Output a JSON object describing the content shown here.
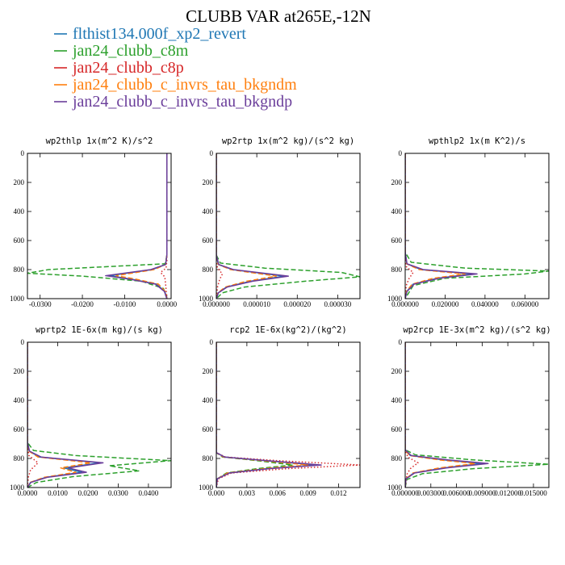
{
  "figure": {
    "title": "CLUBB VAR at265E,-12N"
  },
  "legend": [
    {
      "label": "flthist134.000f_xp2_revert",
      "color": "#1f77b4"
    },
    {
      "label": "jan24_clubb_c8m",
      "color": "#2ca02c"
    },
    {
      "label": "jan24_clubb_c8p",
      "color": "#d62728"
    },
    {
      "label": "jan24_clubb_c_invrs_tau_bkgndm",
      "color": "#ff7f0e"
    },
    {
      "label": "jan24_clubb_c_invrs_tau_bkgndp",
      "color": "#6a3d9a"
    }
  ],
  "chart_data": [
    {
      "type": "line",
      "title": "wp2thlp  1x(m^2 K)/s^2",
      "xlim": [
        -0.033,
        0.001
      ],
      "ylim": [
        1000,
        0
      ],
      "y_inverted": true,
      "xticks": [
        -0.03,
        -0.02,
        -0.01,
        0.0
      ],
      "xtick_labels": [
        "-0.0300",
        "-0.0200",
        "-0.0100",
        "0.0000"
      ],
      "yticks": [
        0,
        200,
        400,
        600,
        800,
        1000
      ],
      "series": [
        {
          "color": "#1f77b4",
          "style": "solid",
          "x": [
            0.0,
            0.0,
            0.0,
            -0.0003,
            -0.0035,
            -0.0135,
            -0.0085,
            -0.0025,
            -0.0005,
            0.0
          ],
          "y": [
            0,
            400,
            700,
            765,
            800,
            842,
            865,
            900,
            950,
            1000
          ]
        },
        {
          "color": "#2ca02c",
          "style": "dashed",
          "x": [
            0.0,
            0.0,
            -0.0004,
            -0.028,
            -0.033,
            -0.02,
            -0.006,
            -0.0008,
            0.0
          ],
          "y": [
            0,
            700,
            760,
            800,
            825,
            845,
            880,
            930,
            1000
          ]
        },
        {
          "color": "#d62728",
          "style": "dotted",
          "x": [
            0.0,
            0.0,
            -0.0002,
            -0.0015,
            -0.0005,
            -0.0003,
            0.0
          ],
          "y": [
            0,
            740,
            790,
            820,
            850,
            900,
            1000
          ]
        },
        {
          "color": "#ff7f0e",
          "style": "dashed",
          "x": [
            0.0,
            0.0,
            0.0,
            -0.0003,
            -0.003,
            -0.012,
            -0.0075,
            -0.002,
            -0.0004,
            0.0
          ],
          "y": [
            0,
            400,
            700,
            765,
            800,
            842,
            865,
            900,
            950,
            1000
          ]
        },
        {
          "color": "#6a3d9a",
          "style": "solid",
          "x": [
            0.0,
            0.0,
            0.0,
            -0.0003,
            -0.0038,
            -0.0145,
            -0.009,
            -0.0027,
            -0.0006,
            0.0
          ],
          "y": [
            0,
            400,
            700,
            765,
            800,
            842,
            865,
            900,
            950,
            1000
          ]
        }
      ]
    },
    {
      "type": "line",
      "title": "wp2rtp  1x(m^2 kg)/(s^2 kg)",
      "xlim": [
        0.0,
        3.55e-05
      ],
      "ylim": [
        1000,
        0
      ],
      "y_inverted": true,
      "xticks": [
        0.0,
        1e-05,
        2e-05,
        3e-05
      ],
      "xtick_labels": [
        "0.000000",
        "0.000010",
        "0.000020",
        "0.000030"
      ],
      "yticks": [
        0,
        200,
        400,
        600,
        800,
        1000
      ],
      "series": [
        {
          "color": "#1f77b4",
          "style": "solid",
          "x": [
            0.0,
            0.0,
            5e-07,
            4e-06,
            1.68e-05,
            8.5e-06,
            2.5e-06,
            5e-07,
            0.0
          ],
          "y": [
            0,
            700,
            765,
            800,
            845,
            880,
            920,
            960,
            1000
          ]
        },
        {
          "color": "#2ca02c",
          "style": "dashed",
          "x": [
            0.0,
            0.0,
            1e-06,
            1.2e-05,
            3.1e-05,
            3.55e-05,
            2.2e-05,
            7e-06,
            1.5e-06,
            0.0
          ],
          "y": [
            0,
            700,
            755,
            790,
            820,
            850,
            880,
            920,
            960,
            1000
          ]
        },
        {
          "color": "#d62728",
          "style": "dotted",
          "x": [
            0.0,
            0.0,
            3e-07,
            1.5e-06,
            8e-07,
            3e-07,
            0.0
          ],
          "y": [
            0,
            740,
            790,
            830,
            870,
            920,
            1000
          ]
        },
        {
          "color": "#ff7f0e",
          "style": "dashed",
          "x": [
            0.0,
            0.0,
            5e-07,
            3.5e-06,
            1.48e-05,
            7.5e-06,
            2.2e-06,
            4e-07,
            0.0
          ],
          "y": [
            0,
            700,
            765,
            800,
            845,
            880,
            920,
            960,
            1000
          ]
        },
        {
          "color": "#6a3d9a",
          "style": "solid",
          "x": [
            0.0,
            0.0,
            6e-07,
            4.2e-06,
            1.78e-05,
            9e-06,
            2.7e-06,
            5e-07,
            0.0
          ],
          "y": [
            0,
            700,
            765,
            800,
            845,
            880,
            920,
            960,
            1000
          ]
        }
      ]
    },
    {
      "type": "line",
      "title": "wpthlp2  1x(m K^2)/s",
      "xlim": [
        0.0,
        0.072
      ],
      "ylim": [
        1000,
        0
      ],
      "y_inverted": true,
      "xticks": [
        0.0,
        0.02,
        0.04,
        0.06
      ],
      "xtick_labels": [
        "0.000000",
        "0.020000",
        "0.040000",
        "0.060000"
      ],
      "yticks": [
        0,
        200,
        400,
        600,
        800,
        1000
      ],
      "series": [
        {
          "color": "#1f77b4",
          "style": "solid",
          "x": [
            0.0,
            0.0,
            0.0008,
            0.008,
            0.034,
            0.016,
            0.004,
            0.0008,
            0.0
          ],
          "y": [
            0,
            680,
            760,
            800,
            830,
            860,
            900,
            950,
            1000
          ]
        },
        {
          "color": "#2ca02c",
          "style": "dashed",
          "x": [
            0.0,
            0.0,
            0.003,
            0.03,
            0.072,
            0.06,
            0.02,
            0.004,
            0.0
          ],
          "y": [
            0,
            680,
            750,
            790,
            810,
            830,
            860,
            910,
            1000
          ]
        },
        {
          "color": "#d62728",
          "style": "dotted",
          "x": [
            0.0,
            0.0,
            0.0006,
            0.004,
            0.002,
            0.0005,
            0.0
          ],
          "y": [
            0,
            720,
            780,
            820,
            860,
            910,
            1000
          ]
        },
        {
          "color": "#ff7f0e",
          "style": "dashed",
          "x": [
            0.0,
            0.0,
            0.0007,
            0.007,
            0.03,
            0.014,
            0.0035,
            0.0007,
            0.0
          ],
          "y": [
            0,
            680,
            760,
            800,
            830,
            860,
            900,
            950,
            1000
          ]
        },
        {
          "color": "#6a3d9a",
          "style": "solid",
          "x": [
            0.0,
            0.0,
            0.0009,
            0.009,
            0.036,
            0.017,
            0.0045,
            0.0009,
            0.0
          ],
          "y": [
            0,
            680,
            760,
            800,
            830,
            860,
            900,
            950,
            1000
          ]
        }
      ]
    },
    {
      "type": "line",
      "title": "wprtp2  1E-6x(m kg)/(s kg)",
      "xlim": [
        0.0,
        0.0475
      ],
      "ylim": [
        1000,
        0
      ],
      "y_inverted": true,
      "xticks": [
        0.0,
        0.01,
        0.02,
        0.03,
        0.04
      ],
      "xtick_labels": [
        "0.0000",
        "0.0100",
        "0.0200",
        "0.0300",
        "0.0400"
      ],
      "yticks": [
        0,
        200,
        400,
        600,
        800,
        1000
      ],
      "series": [
        {
          "color": "#1f77b4",
          "style": "solid",
          "x": [
            0.0,
            0.0,
            0.0006,
            0.004,
            0.024,
            0.012,
            0.018,
            0.006,
            0.001,
            0.0
          ],
          "y": [
            0,
            690,
            750,
            790,
            830,
            865,
            895,
            930,
            965,
            1000
          ]
        },
        {
          "color": "#2ca02c",
          "style": "dashed",
          "x": [
            0.0,
            0.0,
            0.002,
            0.016,
            0.0475,
            0.027,
            0.037,
            0.015,
            0.003,
            0.0
          ],
          "y": [
            0,
            690,
            745,
            780,
            815,
            850,
            885,
            925,
            965,
            1000
          ]
        },
        {
          "color": "#d62728",
          "style": "dotted",
          "x": [
            0.0,
            0.0,
            0.0005,
            0.0035,
            0.001,
            0.0003,
            0.0
          ],
          "y": [
            0,
            720,
            780,
            830,
            880,
            930,
            1000
          ]
        },
        {
          "color": "#ff7f0e",
          "style": "dashed",
          "x": [
            0.0,
            0.0,
            0.0005,
            0.0035,
            0.021,
            0.011,
            0.016,
            0.0055,
            0.0009,
            0.0
          ],
          "y": [
            0,
            690,
            750,
            790,
            830,
            865,
            895,
            930,
            965,
            1000
          ]
        },
        {
          "color": "#6a3d9a",
          "style": "solid",
          "x": [
            0.0,
            0.0,
            0.0007,
            0.0045,
            0.025,
            0.0135,
            0.0195,
            0.0065,
            0.0011,
            0.0
          ],
          "y": [
            0,
            690,
            750,
            790,
            830,
            865,
            895,
            930,
            965,
            1000
          ]
        }
      ]
    },
    {
      "type": "line",
      "title": "rcp2  1E-6x(kg^2)/(kg^2)",
      "xlim": [
        0.0,
        0.0141
      ],
      "ylim": [
        1000,
        0
      ],
      "y_inverted": true,
      "xticks": [
        0.0,
        0.003,
        0.006,
        0.009,
        0.012
      ],
      "xtick_labels": [
        "0.000",
        "0.003",
        "0.006",
        "0.009",
        "0.012"
      ],
      "yticks": [
        0,
        200,
        400,
        600,
        800,
        1000
      ],
      "series": [
        {
          "color": "#1f77b4",
          "style": "solid",
          "x": [
            0.0,
            0.0,
            0.0008,
            0.0048,
            0.0098,
            0.005,
            0.0012,
            0.0001,
            0.0
          ],
          "y": [
            0,
            760,
            790,
            815,
            845,
            870,
            900,
            940,
            1000
          ]
        },
        {
          "color": "#2ca02c",
          "style": "dashed",
          "x": [
            0.0,
            0.0,
            0.0006,
            0.004,
            0.0075,
            0.004,
            0.001,
            0.0001,
            0.0
          ],
          "y": [
            0,
            760,
            790,
            815,
            845,
            870,
            900,
            940,
            1000
          ]
        },
        {
          "color": "#d62728",
          "style": "dotted",
          "x": [
            0.0,
            0.0,
            0.0009,
            0.006,
            0.0141,
            0.007,
            0.0015,
            0.0002,
            0.0
          ],
          "y": [
            0,
            760,
            790,
            815,
            845,
            870,
            900,
            940,
            1000
          ]
        },
        {
          "color": "#ff7f0e",
          "style": "dashed",
          "x": [
            0.0,
            0.0,
            0.0007,
            0.0045,
            0.009,
            0.0047,
            0.0011,
            0.0001,
            0.0
          ],
          "y": [
            0,
            760,
            790,
            815,
            845,
            870,
            900,
            940,
            1000
          ]
        },
        {
          "color": "#6a3d9a",
          "style": "solid",
          "x": [
            0.0,
            0.0,
            0.0008,
            0.005,
            0.0103,
            0.0052,
            0.0013,
            0.0001,
            0.0
          ],
          "y": [
            0,
            760,
            790,
            815,
            845,
            870,
            900,
            940,
            1000
          ]
        }
      ]
    },
    {
      "type": "line",
      "title": "wp2rcp  1E-3x(m^2 kg)/(s^2 kg)",
      "xlim": [
        0.0,
        0.0168
      ],
      "ylim": [
        1000,
        0
      ],
      "y_inverted": true,
      "xticks": [
        0.0,
        0.003,
        0.006,
        0.009,
        0.012,
        0.015
      ],
      "xtick_labels": [
        "0.000000",
        "0.003000",
        "0.006000",
        "0.009000",
        "0.012000",
        "0.015000"
      ],
      "yticks": [
        0,
        200,
        400,
        600,
        800,
        1000
      ],
      "series": [
        {
          "color": "#1f77b4",
          "style": "solid",
          "x": [
            0.0,
            0.0,
            0.0006,
            0.0045,
            0.009,
            0.0045,
            0.001,
            0.0001,
            0.0
          ],
          "y": [
            0,
            740,
            780,
            810,
            835,
            865,
            900,
            940,
            1000
          ]
        },
        {
          "color": "#2ca02c",
          "style": "dashed",
          "x": [
            0.0,
            0.0,
            0.0012,
            0.008,
            0.0168,
            0.008,
            0.002,
            0.0002,
            0.0
          ],
          "y": [
            0,
            740,
            775,
            810,
            840,
            870,
            905,
            945,
            1000
          ]
        },
        {
          "color": "#d62728",
          "style": "dotted",
          "x": [
            0.0,
            0.0,
            0.0003,
            0.0015,
            0.0006,
            0.0002,
            0.0
          ],
          "y": [
            0,
            740,
            790,
            830,
            870,
            910,
            1000
          ]
        },
        {
          "color": "#ff7f0e",
          "style": "dashed",
          "x": [
            0.0,
            0.0,
            0.0005,
            0.004,
            0.0082,
            0.004,
            0.0009,
            0.0001,
            0.0
          ],
          "y": [
            0,
            740,
            780,
            810,
            835,
            865,
            900,
            940,
            1000
          ]
        },
        {
          "color": "#6a3d9a",
          "style": "solid",
          "x": [
            0.0,
            0.0,
            0.0007,
            0.005,
            0.0097,
            0.0048,
            0.0011,
            0.0001,
            0.0
          ],
          "y": [
            0,
            740,
            780,
            810,
            835,
            865,
            900,
            940,
            1000
          ]
        }
      ]
    }
  ]
}
